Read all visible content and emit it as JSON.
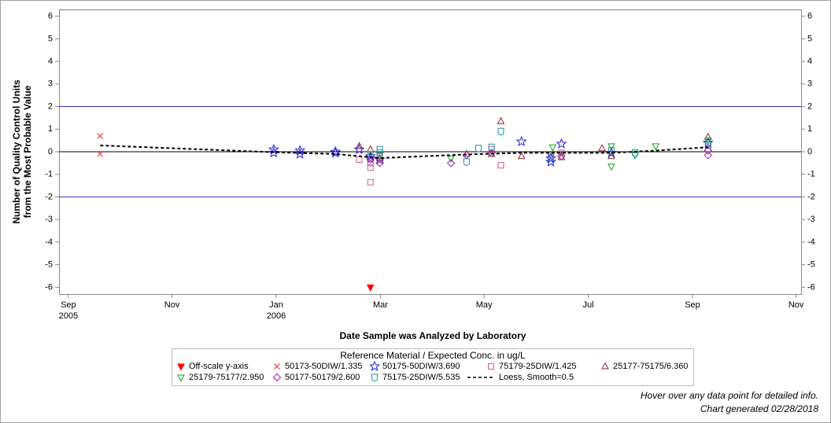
{
  "chart_data": {
    "type": "scatter",
    "x_label": "Date Sample was Analyzed by Laboratory",
    "y_label": [
      "Number of Quality Control Units",
      "from the Most Probable Value"
    ],
    "xlim": [
      2005.652,
      2006.841
    ],
    "ylim": [
      -6.3,
      6.3
    ],
    "xticks": [
      {
        "value": 2005.667,
        "label": "Sep 2005"
      },
      {
        "value": 2005.833,
        "label": "Nov"
      },
      {
        "value": 2006.0,
        "label": "Jan 2006"
      },
      {
        "value": 2006.167,
        "label": "Mar"
      },
      {
        "value": 2006.333,
        "label": "May"
      },
      {
        "value": 2006.5,
        "label": "Jul"
      },
      {
        "value": 2006.667,
        "label": "Sep"
      },
      {
        "value": 2006.833,
        "label": "Nov"
      }
    ],
    "yticks": [
      -6,
      -5,
      -4,
      -3,
      -2,
      -1,
      0,
      1,
      2,
      3,
      4,
      5,
      6
    ],
    "reference_lines": [
      {
        "value": 2,
        "color": "#3333cc"
      },
      {
        "value": 0,
        "color": "#000000"
      },
      {
        "value": -2,
        "color": "#3333cc"
      }
    ],
    "legend_title": "Reference Material / Expected Conc. in ug/L",
    "series": [
      {
        "name": "Off-scale y-axis",
        "marker": "filled-down-triangle",
        "color": "#ff0000",
        "x": [
          2006.151
        ],
        "values": [
          -6
        ]
      },
      {
        "name": "50173-50DIW/1.335",
        "marker": "x",
        "color": "#e8262a",
        "x": [
          2005.718,
          2005.718
        ],
        "values": [
          0.7,
          -0.1
        ]
      },
      {
        "name": "50175-50DIW/3.690",
        "marker": "star",
        "color": "#1f1fe0",
        "x": [
          2005.996,
          2005.996,
          2006.038,
          2006.038,
          2006.095,
          2006.095,
          2006.133,
          2006.151,
          2006.151,
          2006.166,
          2006.393,
          2006.44,
          2006.44,
          2006.457,
          2006.537,
          2006.692
        ],
        "values": [
          0.1,
          -0.05,
          0.05,
          -0.1,
          0,
          -0.05,
          0.1,
          -0.2,
          -0.3,
          -0.35,
          0.45,
          -0.3,
          -0.45,
          0.35,
          -0.05,
          0.4
        ]
      },
      {
        "name": "75179-25DIW/1.425",
        "marker": "square",
        "color": "#d45b8a",
        "x": [
          2006.133,
          2006.151,
          2006.151,
          2006.151,
          2006.166,
          2006.345,
          2006.36,
          2006.44,
          2006.457,
          2006.692
        ],
        "values": [
          -0.35,
          -0.7,
          -1.35,
          -0.5,
          -0.2,
          0.1,
          -0.6,
          -0.15,
          -0.05,
          0.1
        ]
      },
      {
        "name": "25177-75175/6.360",
        "marker": "triangle",
        "color": "#8b2323",
        "x": [
          2006.133,
          2006.151,
          2006.166,
          2006.305,
          2006.345,
          2006.36,
          2006.393,
          2006.457,
          2006.522,
          2006.537,
          2006.692
        ],
        "values": [
          0.25,
          0.1,
          -0.3,
          -0.1,
          -0.1,
          1.35,
          -0.2,
          -0.25,
          0.15,
          -0.2,
          0.65
        ]
      },
      {
        "name": "25179-75177/2.950",
        "marker": "down-triangle",
        "color": "#1a9e1a",
        "x": [
          2006.151,
          2006.166,
          2006.28,
          2006.443,
          2006.537,
          2006.537,
          2006.575,
          2006.608,
          2006.692
        ],
        "values": [
          -0.1,
          -0.15,
          -0.3,
          0.2,
          0.25,
          -0.65,
          -0.15,
          0.25,
          0.5
        ]
      },
      {
        "name": "50177-50179/2.600",
        "marker": "diamond",
        "color": "#9b1fb0",
        "x": [
          2006.151,
          2006.166,
          2006.28,
          2006.305,
          2006.345,
          2006.44,
          2006.457,
          2006.692,
          2006.692
        ],
        "values": [
          -0.35,
          -0.5,
          -0.5,
          -0.15,
          -0.05,
          -0.25,
          -0.2,
          -0.15,
          0.05
        ]
      },
      {
        "name": "75175-25DIW/5.535",
        "marker": "shield",
        "color": "#1b8fa8",
        "x": [
          2006.166,
          2006.166,
          2006.305,
          2006.324,
          2006.345,
          2006.36,
          2006.44,
          2006.537,
          2006.575,
          2006.692
        ],
        "values": [
          0.1,
          -0.05,
          -0.45,
          0.15,
          0.2,
          0.9,
          -0.25,
          0.05,
          -0.05,
          0.3
        ]
      },
      {
        "name": "Loess, Smooth=0.5",
        "marker": "dashed-line",
        "color": "#000000",
        "x": [
          2005.718,
          2005.996,
          2006.095,
          2006.166,
          2006.305,
          2006.393,
          2006.537,
          2006.608,
          2006.692
        ],
        "values": [
          0.28,
          -0.02,
          -0.1,
          -0.28,
          -0.12,
          -0.05,
          -0.05,
          0.05,
          0.2
        ]
      }
    ],
    "footnotes": [
      "Hover over any data point for detailed info.",
      "Chart generated 02/28/2018"
    ]
  }
}
